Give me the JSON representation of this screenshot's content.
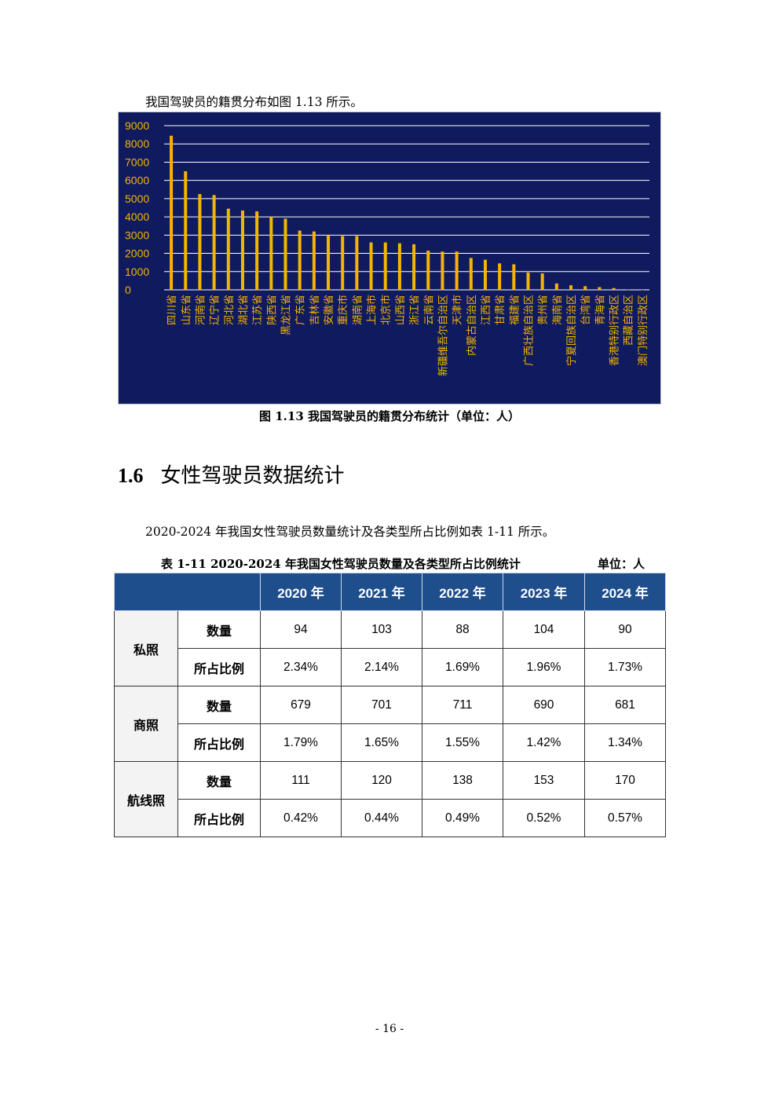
{
  "intro_text": "我国驾驶员的籍贯分布如图 1.13 所示。",
  "figure_caption": "图 1.13  我国驾驶员的籍贯分布统计（单位：人）",
  "chart_data": {
    "type": "bar",
    "categories": [
      "四川省",
      "山东省",
      "河南省",
      "辽宁省",
      "河北省",
      "湖北省",
      "江苏省",
      "陕西省",
      "黑龙江省",
      "广东省",
      "吉林省",
      "安徽省",
      "重庆市",
      "湖南省",
      "上海市",
      "北京市",
      "山西省",
      "浙江省",
      "云南省",
      "新疆维吾尔自治区",
      "天津市",
      "内蒙古自治区",
      "江西省",
      "甘肃省",
      "福建省",
      "广西壮族自治区",
      "贵州省",
      "海南省",
      "宁夏回族自治区",
      "台湾省",
      "青海省",
      "香港特别行政区",
      "西藏自治区",
      "澳门特别行政区"
    ],
    "values": [
      8450,
      6500,
      5250,
      5200,
      4450,
      4350,
      4300,
      4000,
      3900,
      3250,
      3200,
      3000,
      2950,
      2950,
      2600,
      2600,
      2550,
      2500,
      2150,
      2100,
      2100,
      1750,
      1650,
      1450,
      1400,
      950,
      900,
      350,
      250,
      200,
      150,
      100,
      10,
      5
    ],
    "ylim": [
      0,
      9000
    ],
    "yticks": [
      0,
      1000,
      2000,
      3000,
      4000,
      5000,
      6000,
      7000,
      8000,
      9000
    ],
    "grid": true,
    "bar_color": "#f5b400",
    "background": "#0f1b5e",
    "label_color": "#f5b400"
  },
  "section": {
    "number": "1.6",
    "title": "女性驾驶员数据统计"
  },
  "paragraph": "2020-2024 年我国女性驾驶员数量统计及各类型所占比例如表 1-11 所示。",
  "table_caption": "表 1-11    2020-2024 年我国女性驾驶员数量及各类型所占比例统计",
  "table_unit": "单位：人",
  "table": {
    "years": [
      "2020 年",
      "2021 年",
      "2022 年",
      "2023 年",
      "2024 年"
    ],
    "groups": [
      {
        "category": "私照",
        "rows": [
          {
            "metric": "数量",
            "values": [
              "94",
              "103",
              "88",
              "104",
              "90"
            ]
          },
          {
            "metric": "所占比例",
            "values": [
              "2.34%",
              "2.14%",
              "1.69%",
              "1.96%",
              "1.73%"
            ]
          }
        ]
      },
      {
        "category": "商照",
        "rows": [
          {
            "metric": "数量",
            "values": [
              "679",
              "701",
              "711",
              "690",
              "681"
            ]
          },
          {
            "metric": "所占比例",
            "values": [
              "1.79%",
              "1.65%",
              "1.55%",
              "1.42%",
              "1.34%"
            ]
          }
        ]
      },
      {
        "category": "航线照",
        "rows": [
          {
            "metric": "数量",
            "values": [
              "111",
              "120",
              "138",
              "153",
              "170"
            ]
          },
          {
            "metric": "所占比例",
            "values": [
              "0.42%",
              "0.44%",
              "0.49%",
              "0.52%",
              "0.57%"
            ]
          }
        ]
      }
    ]
  },
  "page_number": "- 16 -"
}
